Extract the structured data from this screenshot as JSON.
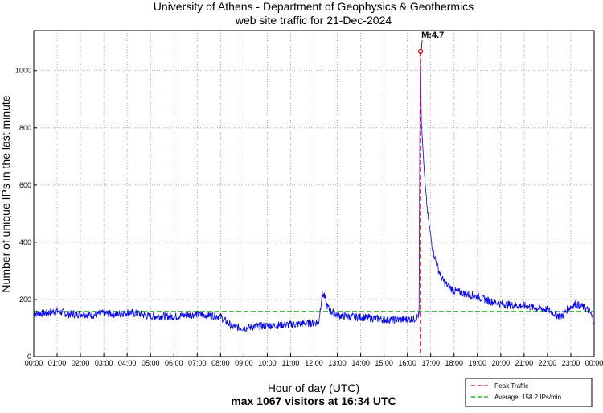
{
  "chart_data": {
    "type": "line",
    "title_lines": [
      "University of Athens - Department of Geophysics & Geothermics",
      "web site traffic for 21-Dec-2024"
    ],
    "xlabel": "Hour of day (UTC)",
    "subtitle": "max 1067 visitors at 16:34 UTC",
    "ylabel": "Number of unique IPs in the last minute",
    "xlim": [
      0,
      24
    ],
    "ylim": [
      0,
      1140
    ],
    "grid": true,
    "x_ticks": [
      {
        "value": 0,
        "label": "00:00"
      },
      {
        "value": 1,
        "label": "01:00"
      },
      {
        "value": 2,
        "label": "02:00"
      },
      {
        "value": 3,
        "label": "03:00"
      },
      {
        "value": 4,
        "label": "04:00"
      },
      {
        "value": 5,
        "label": "05:00"
      },
      {
        "value": 6,
        "label": "06:00"
      },
      {
        "value": 7,
        "label": "07:00"
      },
      {
        "value": 8,
        "label": "08:00"
      },
      {
        "value": 9,
        "label": "09:00"
      },
      {
        "value": 10,
        "label": "10:00"
      },
      {
        "value": 11,
        "label": "11:00"
      },
      {
        "value": 12,
        "label": "12:00"
      },
      {
        "value": 13,
        "label": "13:00"
      },
      {
        "value": 14,
        "label": "14:00"
      },
      {
        "value": 15,
        "label": "15:00"
      },
      {
        "value": 16,
        "label": "16:00"
      },
      {
        "value": 17,
        "label": "17:00"
      },
      {
        "value": 18,
        "label": "18:00"
      },
      {
        "value": 19,
        "label": "19:00"
      },
      {
        "value": 20,
        "label": "20:00"
      },
      {
        "value": 21,
        "label": "21:00"
      },
      {
        "value": 22,
        "label": "22:00"
      },
      {
        "value": 23,
        "label": "23:00"
      },
      {
        "value": 24,
        "label": "00:00"
      }
    ],
    "y_ticks": [
      {
        "value": 0,
        "label": "0"
      },
      {
        "value": 200,
        "label": "200"
      },
      {
        "value": 400,
        "label": "400"
      },
      {
        "value": 600,
        "label": "600"
      },
      {
        "value": 800,
        "label": "800"
      },
      {
        "value": 1000,
        "label": "1000"
      }
    ],
    "series": [
      {
        "color": "#0000ff",
        "x": [
          0,
          0.5,
          1,
          1.5,
          2,
          2.5,
          3,
          3.5,
          4,
          4.5,
          5,
          5.5,
          6,
          6.5,
          7,
          7.5,
          8,
          8.2,
          8.5,
          9,
          9.5,
          10,
          10.5,
          11,
          11.5,
          12,
          12.2,
          12.35,
          12.45,
          12.55,
          12.7,
          13,
          13.5,
          14,
          14.5,
          15,
          15.5,
          16,
          16.3,
          16.5,
          16.55,
          16.57,
          16.6,
          16.7,
          16.8,
          16.9,
          17,
          17.1,
          17.2,
          17.35,
          17.5,
          17.7,
          18,
          18.5,
          19,
          19.5,
          20,
          20.5,
          21,
          21.5,
          22,
          22.3,
          22.6,
          22.9,
          23.2,
          23.5,
          23.8,
          24
        ],
        "y": [
          150,
          152,
          160,
          148,
          150,
          145,
          152,
          148,
          155,
          150,
          140,
          142,
          140,
          145,
          148,
          145,
          140,
          125,
          105,
          100,
          105,
          108,
          110,
          112,
          115,
          118,
          120,
          220,
          210,
          180,
          160,
          145,
          140,
          138,
          135,
          130,
          128,
          130,
          132,
          145,
          1067,
          1000,
          820,
          680,
          560,
          480,
          420,
          370,
          340,
          300,
          270,
          250,
          230,
          220,
          210,
          195,
          185,
          180,
          178,
          170,
          165,
          150,
          140,
          170,
          185,
          175,
          160,
          120
        ],
        "noise_amplitude": 14
      }
    ],
    "peak": {
      "x": 16.567,
      "y": 1067,
      "color": "#ff0000",
      "annotation": "M:4.7"
    },
    "average": {
      "y": 158.2,
      "color": "#00aa00"
    },
    "legend": {
      "placement": "bottom-right",
      "entries": [
        {
          "label": "Peak Traffic",
          "color": "#ff0000"
        },
        {
          "label": "Average: 158.2 IPs/min",
          "color": "#00aa00"
        }
      ]
    }
  }
}
